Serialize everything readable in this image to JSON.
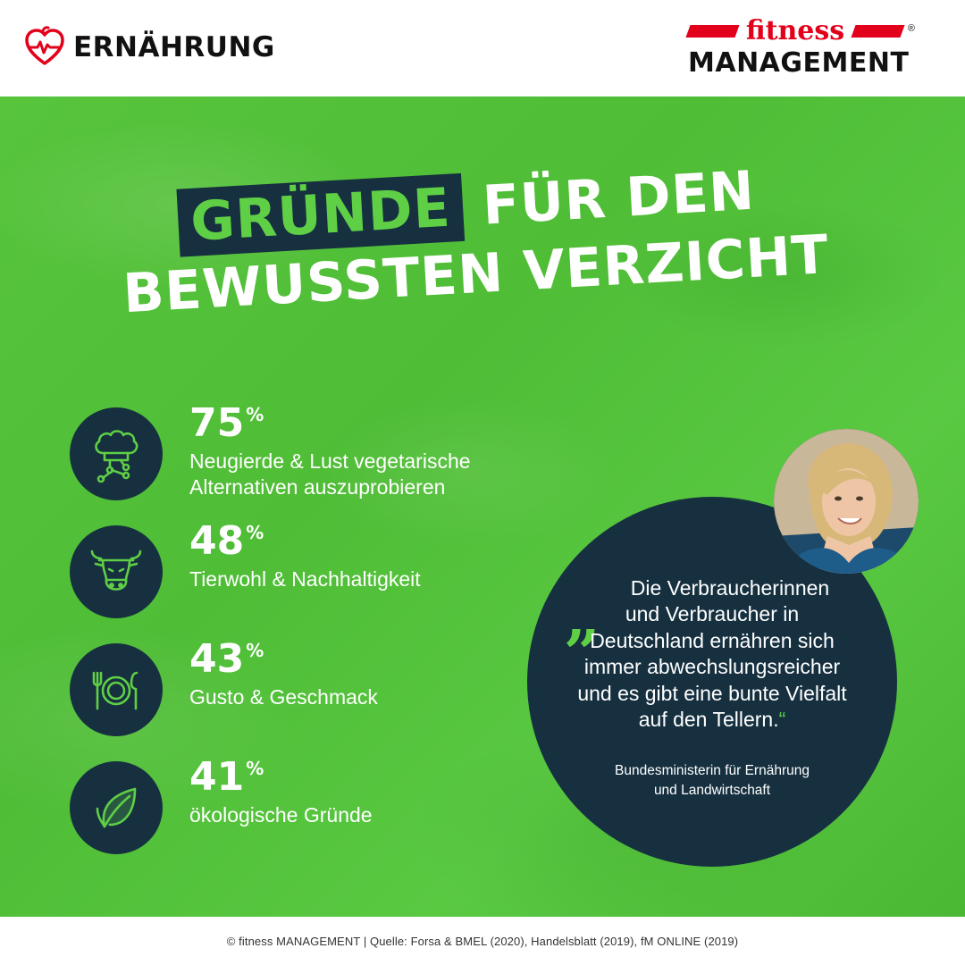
{
  "header": {
    "category_icon": "heart-pulse-icon",
    "category_label": "ERNÄHRUNG",
    "brand": {
      "word_top": "fitness",
      "word_bottom": "MANAGEMENT",
      "registered_mark": "®",
      "accent_color": "#e3001b"
    }
  },
  "title": {
    "highlight": "GRÜNDE",
    "line1_rest": "FÜR DEN",
    "line2": "BEWUSSTEN VERZICHT"
  },
  "colors": {
    "background_green": "#52c23a",
    "navy": "#163040",
    "light_green": "#5fcf45"
  },
  "stats": [
    {
      "icon": "chef-hat-icon",
      "value": "75",
      "unit": "%",
      "label_l1": "Neugierde & Lust vegetarische",
      "label_l2": "Alternativen auszuprobieren"
    },
    {
      "icon": "cow-head-icon",
      "value": "48",
      "unit": "%",
      "label_l1": "Tierwohl & Nachhaltigkeit",
      "label_l2": ""
    },
    {
      "icon": "plate-cutlery-icon",
      "value": "43",
      "unit": "%",
      "label_l1": "Gusto & Geschmack",
      "label_l2": ""
    },
    {
      "icon": "leaf-icon",
      "value": "41",
      "unit": "%",
      "label_l1": "ökologische Gründe",
      "label_l2": ""
    }
  ],
  "quote": {
    "open_mark": "„",
    "lines": [
      "Die Verbraucherinnen",
      "und Verbraucher in",
      "Deutschland ernähren sich",
      "immer abwechslungsreicher",
      "und es gibt eine bunte Vielfalt",
      "auf den Tellern."
    ],
    "close_mark": "“",
    "role_l1": "Bundesministerin für Ernährung",
    "role_l2": "und Landwirtschaft"
  },
  "footer": {
    "text": "© fitness MANAGEMENT  |  Quelle: Forsa & BMEL (2020), Handelsblatt (2019), fM ONLINE (2019)"
  }
}
